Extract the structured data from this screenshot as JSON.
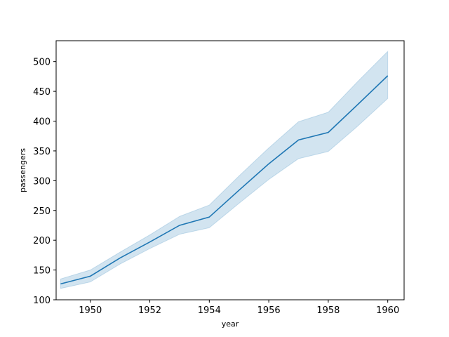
{
  "chart_data": {
    "type": "line",
    "title": "",
    "xlabel": "year",
    "ylabel": "passengers",
    "x": [
      1949,
      1950,
      1951,
      1952,
      1953,
      1954,
      1955,
      1956,
      1957,
      1958,
      1959,
      1960
    ],
    "series": [
      {
        "values": [
          126.7,
          139.7,
          170.2,
          197.0,
          225.0,
          238.9,
          284.0,
          328.3,
          368.4,
          381.0,
          428.3,
          476.2
        ],
        "ci_lower": [
          119,
          130,
          160,
          186,
          210,
          221,
          262,
          302,
          337,
          349,
          392,
          438
        ],
        "ci_upper": [
          135,
          150,
          180,
          209,
          240,
          259,
          308,
          355,
          399,
          415,
          467,
          517
        ],
        "color": "#1f77b4"
      }
    ],
    "xlim": [
      1948.85,
      1960.55
    ],
    "ylim": [
      100,
      535
    ],
    "xticks": [
      "1950",
      "1952",
      "1954",
      "1956",
      "1958",
      "1960"
    ],
    "xtick_values": [
      1950,
      1952,
      1954,
      1956,
      1958,
      1960
    ],
    "yticks": [
      "100",
      "150",
      "200",
      "250",
      "300",
      "350",
      "400",
      "450",
      "500"
    ],
    "ytick_values": [
      100,
      150,
      200,
      250,
      300,
      350,
      400,
      450,
      500
    ],
    "grid": false,
    "legend": "none"
  }
}
